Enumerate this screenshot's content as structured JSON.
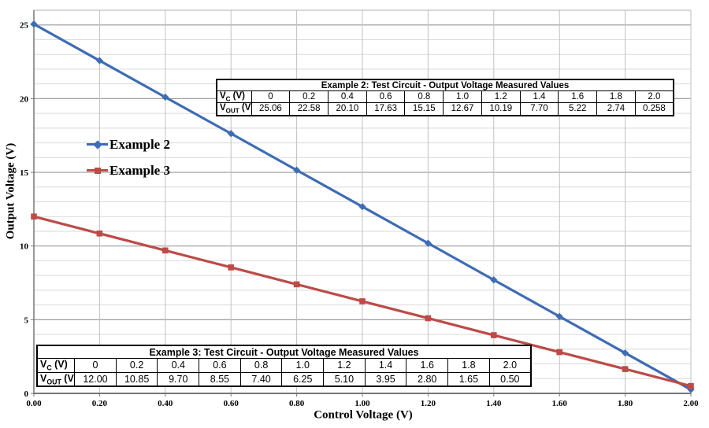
{
  "colors": {
    "series_blue": "#3E6CB5",
    "series_red": "#BE4A47",
    "grid_minor": "#D9D9D9",
    "grid_major": "#9E9E9E",
    "grid_vertical": "#C0C0C0",
    "plot_border": "#B0B0B0",
    "axis": "#767676",
    "text": "#000000"
  },
  "chart_data": {
    "type": "line",
    "title": "",
    "xlabel": "Control Voltage (V)",
    "ylabel": "Output Voltage (V)",
    "xlim": [
      0,
      2.0
    ],
    "ylim": [
      0,
      26
    ],
    "x": [
      0,
      0.2,
      0.4,
      0.6,
      0.8,
      1.0,
      1.2,
      1.4,
      1.6,
      1.8,
      2.0
    ],
    "series": [
      {
        "name": "Example 2",
        "marker": "diamond",
        "color": "#3E6CB5",
        "values": [
          25.06,
          22.58,
          20.1,
          17.63,
          15.15,
          12.67,
          10.19,
          7.7,
          5.22,
          2.74,
          0.258
        ]
      },
      {
        "name": "Example 3",
        "marker": "square",
        "color": "#BE4A47",
        "values": [
          12.0,
          10.85,
          9.7,
          8.55,
          7.4,
          6.25,
          5.1,
          3.95,
          2.8,
          1.65,
          0.5
        ]
      }
    ],
    "x_ticks": [
      "0.00",
      "0.20",
      "0.40",
      "0.60",
      "0.80",
      "1.00",
      "1.20",
      "1.40",
      "1.60",
      "1.80",
      "2.00"
    ],
    "x_tick_values": [
      0,
      0.2,
      0.4,
      0.6,
      0.8,
      1.0,
      1.2,
      1.4,
      1.6,
      1.8,
      2.0
    ],
    "y_ticks": [
      "0",
      "5",
      "10",
      "15",
      "20",
      "25"
    ],
    "y_tick_values": [
      0,
      5,
      10,
      15,
      20,
      25
    ],
    "grid": {
      "vertical_interval": 0.2,
      "horizontal_minor": 1,
      "horizontal_major": 5
    },
    "legend_position": "left-middle"
  },
  "tables": [
    {
      "title": "Example 2: Test Circuit - Output Voltage Measured Values",
      "rows": [
        {
          "label": {
            "base": "V",
            "sub": "C",
            "rest": " (V)"
          },
          "values": [
            "0",
            "0.2",
            "0.4",
            "0.6",
            "0.8",
            "1.0",
            "1.2",
            "1.4",
            "1.6",
            "1.8",
            "2.0"
          ]
        },
        {
          "label": {
            "base": "V",
            "sub": "OUT",
            "rest": " (V)"
          },
          "values": [
            "25.06",
            "22.58",
            "20.10",
            "17.63",
            "15.15",
            "12.67",
            "10.19",
            "7.70",
            "5.22",
            "2.74",
            "0.258"
          ]
        }
      ]
    },
    {
      "title": "Example 3: Test Circuit - Output Voltage Measured Values",
      "rows": [
        {
          "label": {
            "base": "V",
            "sub": "C",
            "rest": " (V)"
          },
          "values": [
            "0",
            "0.2",
            "0.4",
            "0.6",
            "0.8",
            "1.0",
            "1.2",
            "1.4",
            "1.6",
            "1.8",
            "2.0"
          ]
        },
        {
          "label": {
            "base": "V",
            "sub": "OUT",
            "rest": " (V)"
          },
          "values": [
            "12.00",
            "10.85",
            "9.70",
            "8.55",
            "7.40",
            "6.25",
            "5.10",
            "3.95",
            "2.80",
            "1.65",
            "0.50"
          ]
        }
      ]
    }
  ]
}
